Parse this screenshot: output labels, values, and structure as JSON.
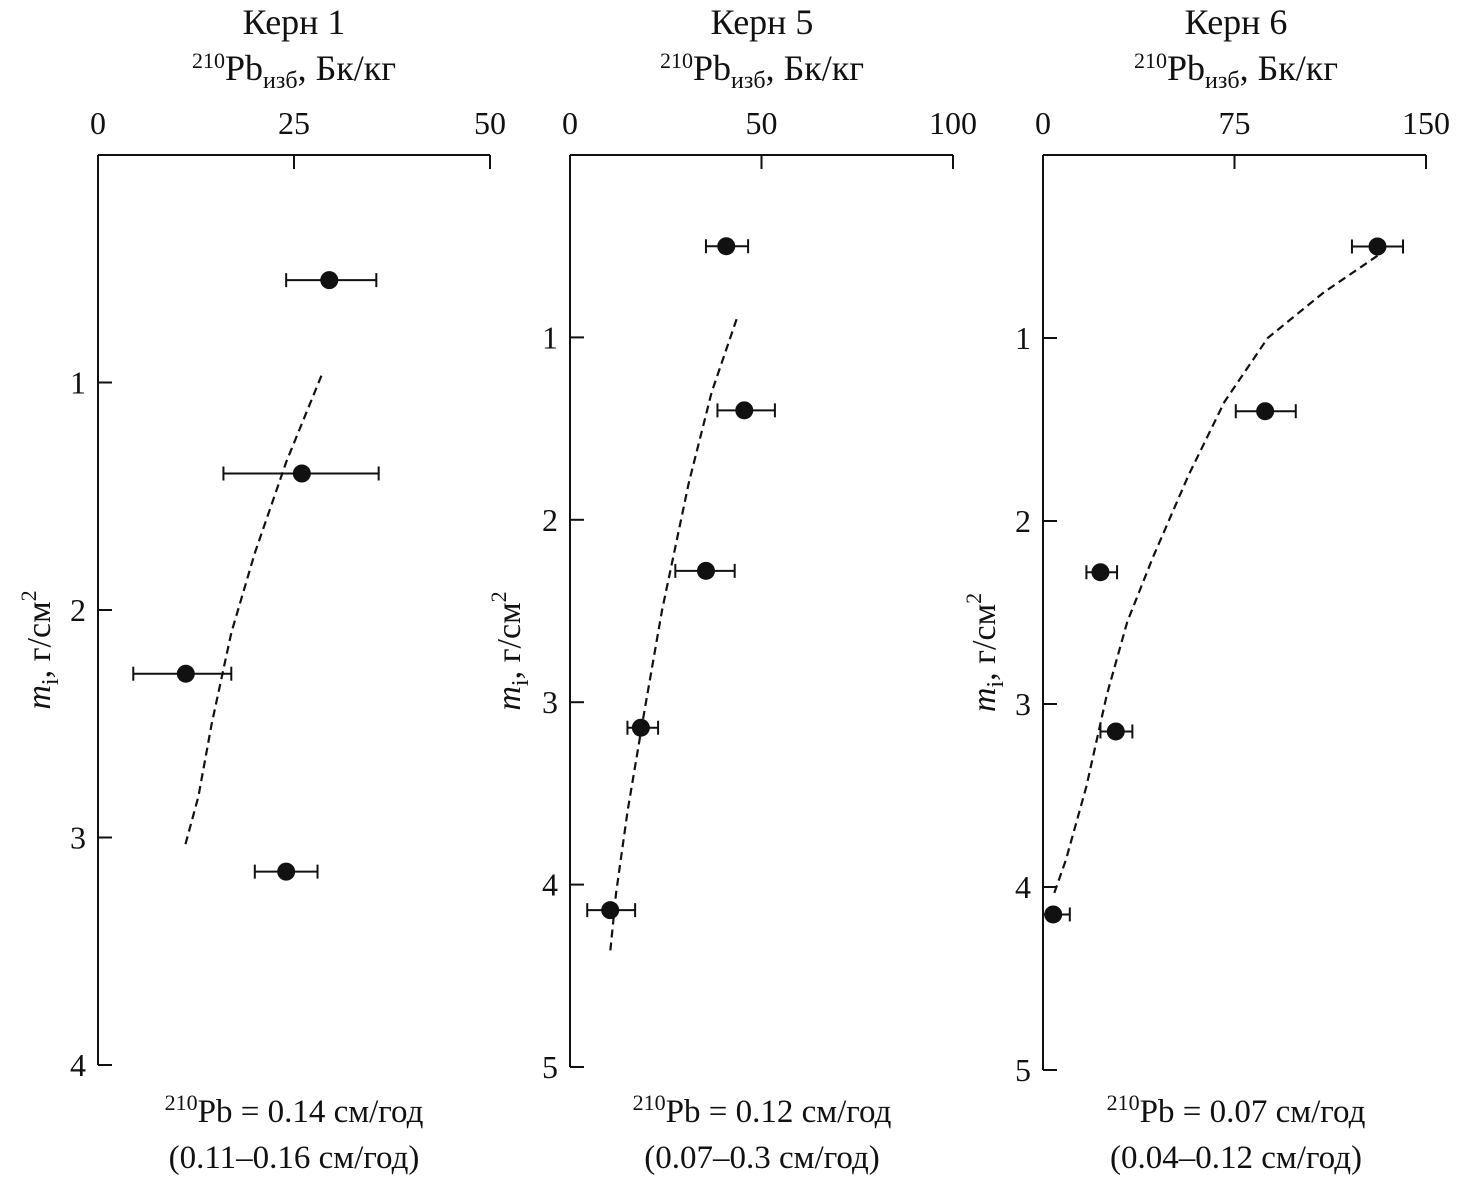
{
  "colors": {
    "ink": "#111111",
    "background": "#ffffff"
  },
  "chart_data": [
    {
      "type": "scatter",
      "title": "Керн 1",
      "xlabel": {
        "sup": "210",
        "main": "Pb",
        "sub": "изб",
        "rest": ", Бк/кг"
      },
      "ylabel": {
        "main": "m",
        "sub": "i",
        "rest": ", г/см",
        "sup": "2"
      },
      "xlim": [
        0,
        50
      ],
      "ylim": [
        0,
        4
      ],
      "x_ticks": [
        "0",
        "25",
        "50"
      ],
      "y_ticks": [
        "1",
        "2",
        "3",
        "4"
      ],
      "points": [
        {
          "x": 29.5,
          "y": 0.55,
          "xerr_low": 24,
          "xerr_high": 35.5
        },
        {
          "x": 26,
          "y": 1.4,
          "xerr_low": 16,
          "xerr_high": 35.8
        },
        {
          "x": 11.2,
          "y": 2.28,
          "xerr_low": 4.5,
          "xerr_high": 17
        },
        {
          "x": 24,
          "y": 3.15,
          "xerr_low": 20,
          "xerr_high": 28
        }
      ],
      "fit_line": [
        {
          "x": 28.5,
          "y": 0.97
        },
        {
          "x": 24,
          "y": 1.35
        },
        {
          "x": 20,
          "y": 1.75
        },
        {
          "x": 17,
          "y": 2.1
        },
        {
          "x": 14.5,
          "y": 2.5
        },
        {
          "x": 12.8,
          "y": 2.82
        },
        {
          "x": 11,
          "y": 3.05
        }
      ],
      "rate": {
        "sup": "210",
        "main": "Pb = 0.14 см/год",
        "range": "(0.11–0.16 см/год)"
      }
    },
    {
      "type": "scatter",
      "title": "Керн 5",
      "xlabel": {
        "sup": "210",
        "main": "Pb",
        "sub": "изб",
        "rest": ", Бк/кг"
      },
      "ylabel": {
        "main": "m",
        "sub": "i",
        "rest": ", г/см",
        "sup": "2"
      },
      "xlim": [
        0,
        100
      ],
      "ylim": [
        0,
        5
      ],
      "x_ticks": [
        "0",
        "50",
        "100"
      ],
      "y_ticks": [
        "1",
        "2",
        "3",
        "4",
        "5"
      ],
      "points": [
        {
          "x": 40.8,
          "y": 0.5,
          "xerr_low": 35.5,
          "xerr_high": 46.5
        },
        {
          "x": 45.5,
          "y": 1.4,
          "xerr_low": 38.5,
          "xerr_high": 53.5
        },
        {
          "x": 35.5,
          "y": 2.28,
          "xerr_low": 27.5,
          "xerr_high": 43
        },
        {
          "x": 18.5,
          "y": 3.14,
          "xerr_low": 15,
          "xerr_high": 23
        },
        {
          "x": 10.5,
          "y": 4.14,
          "xerr_low": 4.5,
          "xerr_high": 17
        }
      ],
      "fit_line": [
        {
          "x": 43.5,
          "y": 0.9
        },
        {
          "x": 37,
          "y": 1.3
        },
        {
          "x": 31,
          "y": 1.8
        },
        {
          "x": 24,
          "y": 2.5
        },
        {
          "x": 19,
          "y": 3.1
        },
        {
          "x": 15,
          "y": 3.6
        },
        {
          "x": 12,
          "y": 4.05
        },
        {
          "x": 10.5,
          "y": 4.37
        }
      ],
      "rate": {
        "sup": "210",
        "main": "Pb = 0.12 см/год",
        "range": "(0.07–0.3 см/год)"
      }
    },
    {
      "type": "scatter",
      "title": "Керн 6",
      "xlabel": {
        "sup": "210",
        "main": "Pb",
        "sub": "изб",
        "rest": ", Бк/кг"
      },
      "ylabel": {
        "main": "m",
        "sub": "i",
        "rest": ", г/см",
        "sup": "2"
      },
      "xlim": [
        0,
        150
      ],
      "ylim": [
        0,
        5
      ],
      "x_ticks": [
        "0",
        "75",
        "150"
      ],
      "y_ticks": [
        "1",
        "2",
        "3",
        "4",
        "5"
      ],
      "points": [
        {
          "x": 131,
          "y": 0.5,
          "xerr_low": 121,
          "xerr_high": 141
        },
        {
          "x": 87,
          "y": 1.4,
          "xerr_low": 75.5,
          "xerr_high": 99
        },
        {
          "x": 22.5,
          "y": 2.28,
          "xerr_low": 17,
          "xerr_high": 29
        },
        {
          "x": 28.5,
          "y": 3.15,
          "xerr_low": 22.5,
          "xerr_high": 35
        },
        {
          "x": 4,
          "y": 4.15,
          "xerr_low": 0,
          "xerr_high": 10.5
        }
      ],
      "fit_line": [
        {
          "x": 131,
          "y": 0.55
        },
        {
          "x": 110,
          "y": 0.75
        },
        {
          "x": 88,
          "y": 1.0
        },
        {
          "x": 71,
          "y": 1.35
        },
        {
          "x": 57,
          "y": 1.75
        },
        {
          "x": 43,
          "y": 2.2
        },
        {
          "x": 33,
          "y": 2.55
        },
        {
          "x": 25,
          "y": 2.95
        },
        {
          "x": 17,
          "y": 3.45
        },
        {
          "x": 9,
          "y": 3.85
        },
        {
          "x": 4,
          "y": 4.05
        }
      ],
      "rate": {
        "sup": "210",
        "main": "Pb = 0.07 см/год",
        "range": "(0.04–0.12 см/год)"
      }
    }
  ]
}
